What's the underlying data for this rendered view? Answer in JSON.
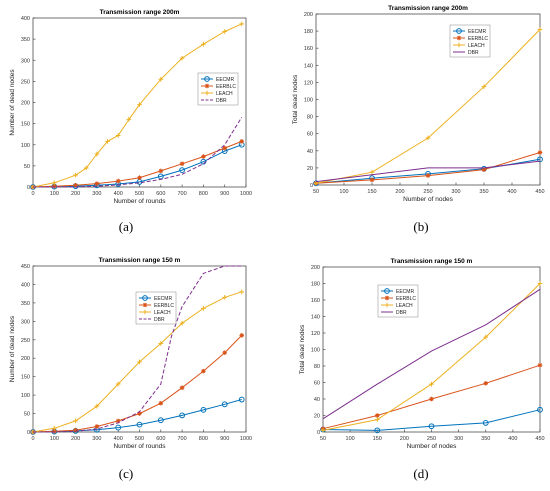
{
  "captions": [
    "(a)",
    "(b)",
    "(c)",
    "(d)"
  ],
  "colors": {
    "EECMR": "#0072BD",
    "EERBLC": "#D95319",
    "LEACH": "#EDB120",
    "DBR": "#7E2F8E",
    "axis": "#4d4d4d",
    "grid_text": "#333333"
  },
  "chart_data": [
    {
      "type": "line",
      "title": "Transmission range 200m",
      "xlabel": "Number of rounds",
      "ylabel": "Number of dead nodes",
      "xlim": [
        0,
        1000
      ],
      "ylim": [
        0,
        400
      ],
      "xticks": [
        0,
        100,
        200,
        300,
        400,
        500,
        600,
        700,
        800,
        900,
        1000
      ],
      "yticks": [
        0,
        50,
        100,
        150,
        200,
        250,
        300,
        350,
        400
      ],
      "legend": "right",
      "series": [
        {
          "name": "EECMR",
          "color": "#0072BD",
          "marker": "circle",
          "dash": false,
          "x": [
            0,
            100,
            200,
            300,
            400,
            500,
            600,
            700,
            800,
            900,
            980
          ],
          "y": [
            0,
            1,
            2,
            4,
            7,
            12,
            25,
            40,
            60,
            85,
            100
          ]
        },
        {
          "name": "EERBLC",
          "color": "#D95319",
          "marker": "star",
          "dash": false,
          "x": [
            0,
            100,
            200,
            300,
            400,
            500,
            600,
            700,
            800,
            900,
            980
          ],
          "y": [
            0,
            2,
            4,
            8,
            14,
            22,
            38,
            55,
            72,
            92,
            108
          ]
        },
        {
          "name": "LEACH",
          "color": "#EDB120",
          "marker": "plus",
          "dash": false,
          "x": [
            0,
            100,
            200,
            250,
            300,
            350,
            400,
            450,
            500,
            600,
            700,
            800,
            900,
            980
          ],
          "y": [
            0,
            10,
            28,
            45,
            78,
            108,
            122,
            160,
            195,
            255,
            305,
            338,
            368,
            386
          ]
        },
        {
          "name": "DBR",
          "color": "#7E2F8E",
          "marker": "none",
          "dash": true,
          "x": [
            0,
            100,
            200,
            300,
            400,
            500,
            600,
            700,
            800,
            900,
            980
          ],
          "y": [
            0,
            0,
            0,
            2,
            5,
            10,
            18,
            30,
            55,
            100,
            165
          ]
        }
      ]
    },
    {
      "type": "line",
      "title": "Transmission range 200m",
      "xlabel": "Number of nodes",
      "ylabel": "Total dead nodes",
      "xlim": [
        50,
        450
      ],
      "ylim": [
        0,
        200
      ],
      "xticks": [
        50,
        100,
        150,
        200,
        250,
        300,
        350,
        400,
        450
      ],
      "yticks": [
        0,
        20,
        40,
        60,
        80,
        100,
        120,
        140,
        160,
        180,
        200
      ],
      "legend": "top-right",
      "series": [
        {
          "name": "EECMR",
          "color": "#0072BD",
          "marker": "circle",
          "dash": false,
          "x": [
            50,
            150,
            250,
            350,
            450
          ],
          "y": [
            2,
            8,
            13,
            19,
            30
          ]
        },
        {
          "name": "EERBLC",
          "color": "#D95319",
          "marker": "star",
          "dash": false,
          "x": [
            50,
            150,
            250,
            350,
            450
          ],
          "y": [
            2,
            6,
            11,
            18,
            38
          ]
        },
        {
          "name": "LEACH",
          "color": "#EDB120",
          "marker": "plus",
          "dash": false,
          "x": [
            50,
            150,
            250,
            350,
            450
          ],
          "y": [
            2,
            15,
            55,
            115,
            182
          ]
        },
        {
          "name": "DBR",
          "color": "#7E2F8E",
          "marker": "none",
          "dash": false,
          "x": [
            50,
            150,
            250,
            350,
            450
          ],
          "y": [
            4,
            12,
            20,
            20,
            28
          ]
        }
      ]
    },
    {
      "type": "line",
      "title": "Transmission range 150 m",
      "xlabel": "Number of rounds",
      "ylabel": "Number of dead nodes",
      "xlim": [
        0,
        1000
      ],
      "ylim": [
        0,
        450
      ],
      "xticks": [
        0,
        100,
        200,
        300,
        400,
        500,
        600,
        700,
        800,
        900,
        1000
      ],
      "yticks": [
        0,
        50,
        100,
        150,
        200,
        250,
        300,
        350,
        400,
        450
      ],
      "legend": "top-left",
      "series": [
        {
          "name": "EECMR",
          "color": "#0072BD",
          "marker": "circle",
          "dash": false,
          "x": [
            0,
            100,
            200,
            300,
            400,
            500,
            600,
            700,
            800,
            900,
            980
          ],
          "y": [
            0,
            1,
            3,
            6,
            12,
            20,
            32,
            45,
            60,
            75,
            88
          ]
        },
        {
          "name": "EERBLC",
          "color": "#D95319",
          "marker": "star",
          "dash": false,
          "x": [
            0,
            100,
            200,
            300,
            400,
            500,
            600,
            700,
            800,
            900,
            980
          ],
          "y": [
            0,
            2,
            5,
            15,
            30,
            50,
            78,
            120,
            165,
            215,
            262
          ]
        },
        {
          "name": "LEACH",
          "color": "#EDB120",
          "marker": "plus",
          "dash": false,
          "x": [
            0,
            100,
            200,
            300,
            400,
            500,
            600,
            700,
            800,
            900,
            980
          ],
          "y": [
            0,
            10,
            30,
            70,
            130,
            190,
            240,
            295,
            335,
            365,
            380
          ]
        },
        {
          "name": "DBR",
          "color": "#7E2F8E",
          "marker": "none",
          "dash": true,
          "x": [
            0,
            100,
            200,
            300,
            400,
            500,
            600,
            650,
            700,
            800,
            900,
            980
          ],
          "y": [
            0,
            0,
            2,
            8,
            25,
            55,
            130,
            260,
            340,
            430,
            455,
            460
          ]
        }
      ]
    },
    {
      "type": "line",
      "title": "Transmission range 150 m",
      "xlabel": "Number of nodes",
      "ylabel": "Total dead nodes",
      "xlim": [
        50,
        450
      ],
      "ylim": [
        0,
        200
      ],
      "xticks": [
        50,
        100,
        150,
        200,
        250,
        300,
        350,
        400,
        450
      ],
      "yticks": [
        0,
        20,
        40,
        60,
        80,
        100,
        120,
        140,
        160,
        180,
        200
      ],
      "legend": "top-left",
      "series": [
        {
          "name": "EECMR",
          "color": "#0072BD",
          "marker": "circle",
          "dash": false,
          "x": [
            50,
            150,
            250,
            350,
            450
          ],
          "y": [
            3,
            2,
            7,
            11,
            27
          ]
        },
        {
          "name": "EERBLC",
          "color": "#D95319",
          "marker": "star",
          "dash": false,
          "x": [
            50,
            150,
            250,
            350,
            450
          ],
          "y": [
            4,
            20,
            40,
            59,
            81
          ]
        },
        {
          "name": "LEACH",
          "color": "#EDB120",
          "marker": "plus",
          "dash": false,
          "x": [
            50,
            150,
            250,
            350,
            450
          ],
          "y": [
            2,
            15,
            58,
            115,
            180
          ]
        },
        {
          "name": "DBR",
          "color": "#7E2F8E",
          "marker": "none",
          "dash": false,
          "x": [
            50,
            150,
            250,
            350,
            450
          ],
          "y": [
            16,
            58,
            98,
            130,
            173
          ]
        }
      ]
    }
  ]
}
